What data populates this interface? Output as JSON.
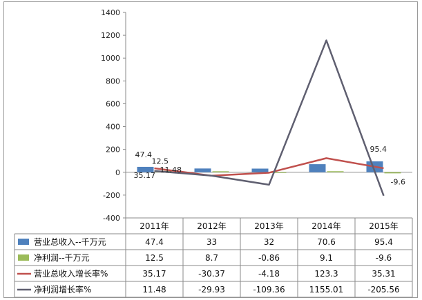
{
  "chart_data": {
    "type": "bar",
    "categories": [
      "2011年",
      "2012年",
      "2013年",
      "2014年",
      "2015年"
    ],
    "ylim": [
      -400,
      1400
    ],
    "yticks": [
      "1400",
      "1200",
      "1000",
      "800",
      "600",
      "400",
      "200",
      "0",
      "-200",
      "-400"
    ],
    "grid": false,
    "legend": "table-below",
    "series": [
      {
        "name": "营业总收入--千万元",
        "kind": "bar",
        "color": "#4f81bd",
        "values": [
          47.4,
          33,
          32,
          70.6,
          95.4
        ],
        "table_values": [
          "47.4",
          "33",
          "32",
          "70.6",
          "95.4"
        ]
      },
      {
        "name": "净利润--千万元",
        "kind": "bar",
        "color": "#9bbb59",
        "values": [
          12.5,
          8.7,
          -0.86,
          9.1,
          -9.6
        ],
        "table_values": [
          "12.5",
          "8.7",
          "-0.86",
          "9.1",
          "-9.6"
        ]
      },
      {
        "name": "营业总收入增长率%",
        "kind": "line",
        "color": "#c0504d",
        "values": [
          35.17,
          -30.37,
          -4.18,
          123.3,
          35.31
        ],
        "table_values": [
          "35.17",
          "-30.37",
          "-4.18",
          "123.3",
          "35.31"
        ]
      },
      {
        "name": "净利润增长率%",
        "kind": "line",
        "color": "#5f5f70",
        "values": [
          11.48,
          -29.93,
          -109.36,
          1155.01,
          -205.56
        ],
        "table_values": [
          "11.48",
          "-29.93",
          "-109.36",
          "1155.01",
          "-205.56"
        ]
      }
    ],
    "data_labels": [
      "47.4",
      "12.5",
      "11.48",
      "35.17",
      "95.4",
      "-9.6"
    ]
  }
}
